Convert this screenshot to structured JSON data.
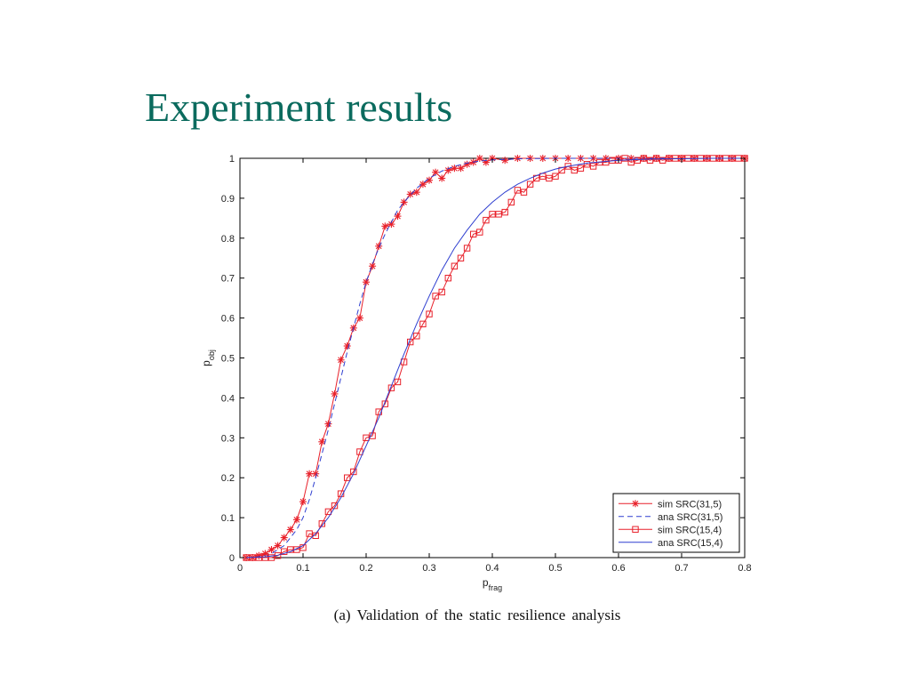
{
  "slide": {
    "title": "Experiment results",
    "caption": "(a) Validation of the static resilience analysis"
  },
  "chart_data": {
    "type": "line",
    "xlabel": "p",
    "xlabel_sub": "frag",
    "ylabel": "p",
    "ylabel_sub": "obj",
    "xlim": [
      0,
      0.8
    ],
    "ylim": [
      0,
      1
    ],
    "xticks": [
      "0",
      "0.1",
      "0.2",
      "0.3",
      "0.4",
      "0.5",
      "0.6",
      "0.7",
      "0.8"
    ],
    "yticks": [
      "0",
      "0.1",
      "0.2",
      "0.3",
      "0.4",
      "0.5",
      "0.6",
      "0.7",
      "0.8",
      "0.9",
      "1"
    ],
    "grid": false,
    "legend_position": "bottom-right",
    "series": [
      {
        "name": "sim SRC(31,5)",
        "color": "#e8202a",
        "line": "solid",
        "marker": "star",
        "x": [
          0.01,
          0.02,
          0.03,
          0.04,
          0.05,
          0.06,
          0.07,
          0.08,
          0.09,
          0.1,
          0.11,
          0.12,
          0.13,
          0.14,
          0.15,
          0.16,
          0.17,
          0.18,
          0.19,
          0.2,
          0.21,
          0.22,
          0.23,
          0.24,
          0.25,
          0.26,
          0.27,
          0.28,
          0.29,
          0.3,
          0.31,
          0.32,
          0.33,
          0.34,
          0.35,
          0.36,
          0.37,
          0.38,
          0.39,
          0.4,
          0.42,
          0.44,
          0.46,
          0.48,
          0.5,
          0.52,
          0.54,
          0.56,
          0.58,
          0.6,
          0.62,
          0.64,
          0.66,
          0.68,
          0.7,
          0.72,
          0.74,
          0.76,
          0.78,
          0.8
        ],
        "y": [
          0.0,
          0.0,
          0.005,
          0.01,
          0.02,
          0.03,
          0.05,
          0.07,
          0.095,
          0.14,
          0.21,
          0.21,
          0.29,
          0.335,
          0.41,
          0.495,
          0.53,
          0.575,
          0.6,
          0.69,
          0.73,
          0.78,
          0.83,
          0.835,
          0.855,
          0.89,
          0.91,
          0.915,
          0.935,
          0.945,
          0.965,
          0.95,
          0.97,
          0.975,
          0.975,
          0.985,
          0.99,
          1.0,
          0.99,
          1.0,
          0.995,
          1.0,
          1.0,
          1.0,
          1.0,
          1.0,
          1.0,
          1.0,
          1.0,
          1.0,
          1.0,
          1.0,
          1.0,
          1.0,
          1.0,
          1.0,
          1.0,
          1.0,
          1.0,
          1.0
        ]
      },
      {
        "name": "ana SRC(31,5)",
        "color": "#2f3fd0",
        "line": "dashed",
        "marker": "none",
        "x": [
          0.01,
          0.03,
          0.05,
          0.07,
          0.09,
          0.1,
          0.11,
          0.12,
          0.13,
          0.14,
          0.15,
          0.16,
          0.17,
          0.18,
          0.19,
          0.2,
          0.21,
          0.22,
          0.23,
          0.24,
          0.25,
          0.26,
          0.28,
          0.3,
          0.32,
          0.34,
          0.36,
          0.38,
          0.4,
          0.45,
          0.5,
          0.6,
          0.7,
          0.8
        ],
        "y": [
          0.0,
          0.002,
          0.01,
          0.03,
          0.07,
          0.1,
          0.145,
          0.2,
          0.26,
          0.32,
          0.385,
          0.45,
          0.515,
          0.575,
          0.635,
          0.69,
          0.735,
          0.775,
          0.81,
          0.84,
          0.87,
          0.89,
          0.925,
          0.95,
          0.968,
          0.98,
          0.988,
          0.993,
          0.996,
          0.999,
          1.0,
          1.0,
          1.0,
          1.0
        ]
      },
      {
        "name": "sim SRC(15,4)",
        "color": "#e8202a",
        "line": "solid",
        "marker": "square",
        "x": [
          0.01,
          0.02,
          0.03,
          0.04,
          0.05,
          0.06,
          0.07,
          0.08,
          0.09,
          0.1,
          0.11,
          0.12,
          0.13,
          0.14,
          0.15,
          0.16,
          0.17,
          0.18,
          0.19,
          0.2,
          0.21,
          0.22,
          0.23,
          0.24,
          0.25,
          0.26,
          0.27,
          0.28,
          0.29,
          0.3,
          0.31,
          0.32,
          0.33,
          0.34,
          0.35,
          0.36,
          0.37,
          0.38,
          0.39,
          0.4,
          0.41,
          0.42,
          0.43,
          0.44,
          0.45,
          0.46,
          0.47,
          0.48,
          0.49,
          0.5,
          0.51,
          0.52,
          0.53,
          0.54,
          0.55,
          0.56,
          0.57,
          0.58,
          0.59,
          0.6,
          0.61,
          0.62,
          0.63,
          0.64,
          0.65,
          0.66,
          0.67,
          0.68,
          0.69,
          0.7,
          0.71,
          0.72,
          0.73,
          0.74,
          0.75,
          0.76,
          0.77,
          0.78,
          0.79,
          0.8
        ],
        "y": [
          0.0,
          0.0,
          0.0,
          0.0,
          0.0,
          0.005,
          0.015,
          0.02,
          0.02,
          0.025,
          0.06,
          0.055,
          0.085,
          0.115,
          0.13,
          0.16,
          0.2,
          0.215,
          0.265,
          0.3,
          0.305,
          0.365,
          0.385,
          0.425,
          0.44,
          0.49,
          0.54,
          0.555,
          0.585,
          0.61,
          0.655,
          0.665,
          0.7,
          0.73,
          0.75,
          0.775,
          0.81,
          0.815,
          0.845,
          0.86,
          0.86,
          0.865,
          0.89,
          0.92,
          0.915,
          0.935,
          0.95,
          0.955,
          0.95,
          0.955,
          0.97,
          0.98,
          0.97,
          0.975,
          0.985,
          0.98,
          0.99,
          0.99,
          0.995,
          0.995,
          1.0,
          0.99,
          0.995,
          1.0,
          0.995,
          1.0,
          0.995,
          1.0,
          1.0,
          1.0,
          1.0,
          1.0,
          1.0,
          1.0,
          1.0,
          1.0,
          1.0,
          1.0,
          1.0,
          1.0
        ]
      },
      {
        "name": "ana SRC(15,4)",
        "color": "#2f3fd0",
        "line": "solid",
        "marker": "none",
        "x": [
          0.01,
          0.04,
          0.06,
          0.08,
          0.1,
          0.12,
          0.14,
          0.16,
          0.18,
          0.2,
          0.22,
          0.24,
          0.26,
          0.28,
          0.3,
          0.32,
          0.34,
          0.36,
          0.38,
          0.4,
          0.42,
          0.44,
          0.46,
          0.48,
          0.5,
          0.52,
          0.55,
          0.6,
          0.65,
          0.7,
          0.75,
          0.8
        ],
        "y": [
          0.0,
          0.002,
          0.006,
          0.015,
          0.03,
          0.06,
          0.1,
          0.15,
          0.21,
          0.28,
          0.35,
          0.43,
          0.51,
          0.585,
          0.655,
          0.72,
          0.775,
          0.82,
          0.86,
          0.89,
          0.915,
          0.935,
          0.95,
          0.963,
          0.973,
          0.98,
          0.988,
          0.995,
          0.998,
          0.999,
          1.0,
          1.0
        ]
      }
    ]
  }
}
